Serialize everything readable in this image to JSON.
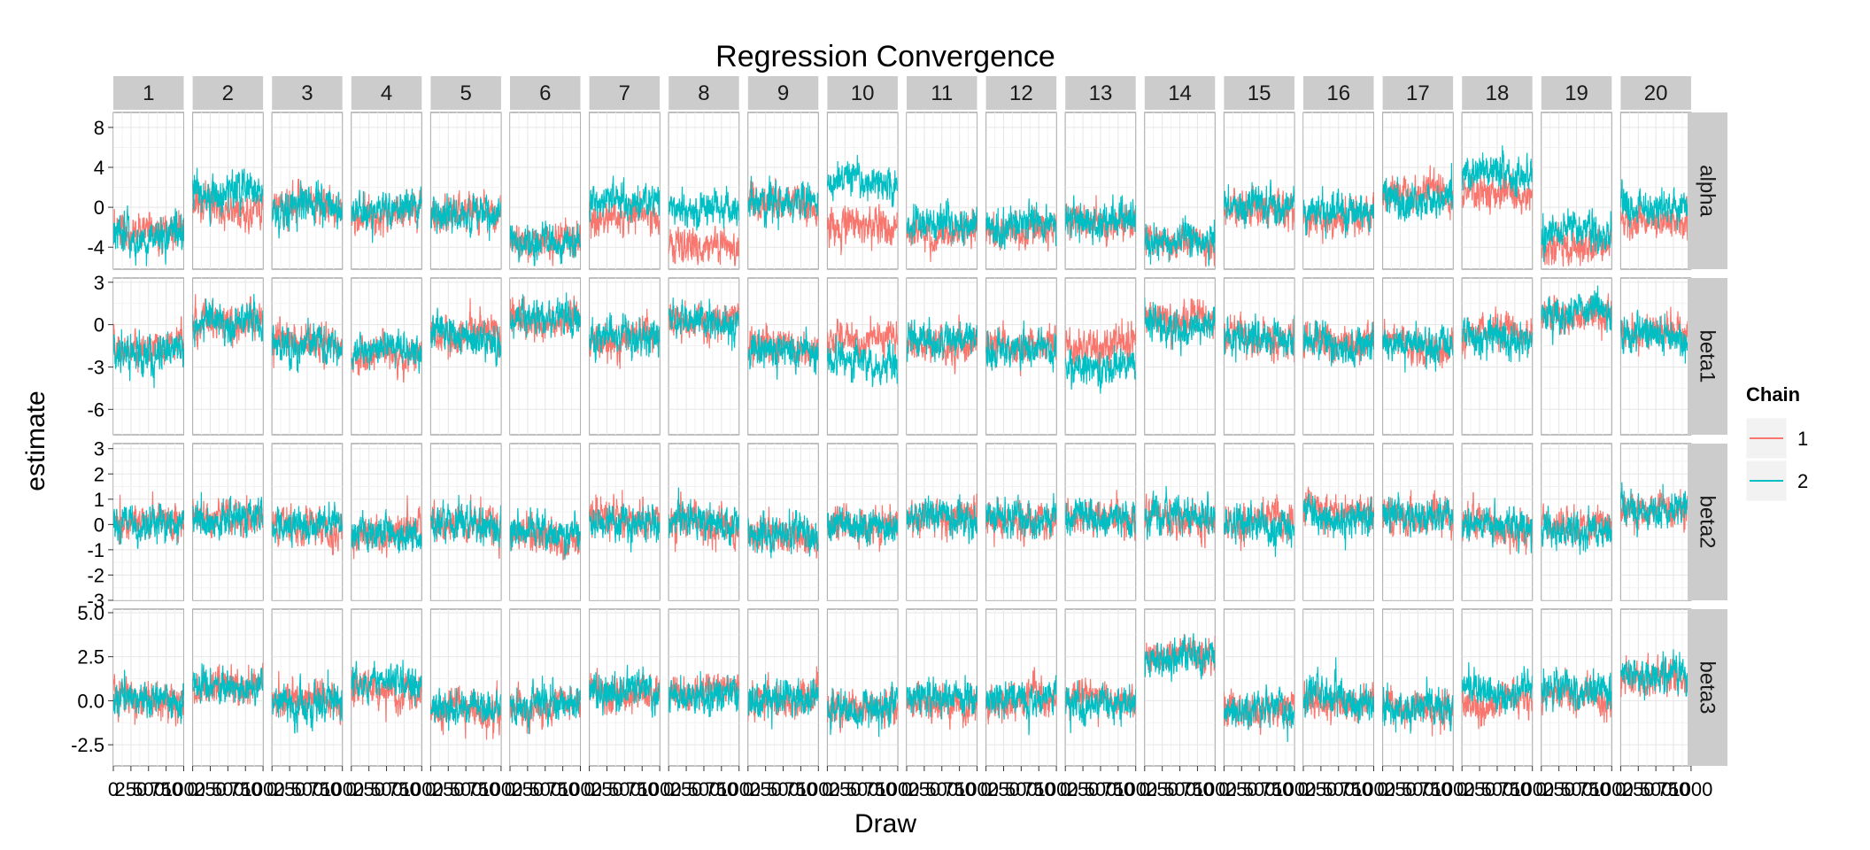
{
  "chart_data": {
    "type": "line",
    "title": "Regression Convergence",
    "xlabel": "Draw",
    "ylabel": "estimate",
    "x_range": [
      0,
      1000
    ],
    "x_ticks": [
      0,
      250,
      500,
      750,
      1000
    ],
    "facet_columns": [
      "1",
      "2",
      "3",
      "4",
      "5",
      "6",
      "7",
      "8",
      "9",
      "10",
      "11",
      "12",
      "13",
      "14",
      "15",
      "16",
      "17",
      "18",
      "19",
      "20"
    ],
    "facet_rows": [
      {
        "label": "alpha",
        "ylim": [
          -6.2,
          9.5
        ],
        "ticks": [
          -4,
          0,
          4,
          8
        ]
      },
      {
        "label": "beta1",
        "ylim": [
          -7.8,
          3.3
        ],
        "ticks": [
          -6,
          -3,
          0,
          3
        ]
      },
      {
        "label": "beta2",
        "ylim": [
          -3.0,
          3.2
        ],
        "ticks": [
          -3,
          -2,
          -1,
          0,
          1,
          2,
          3
        ]
      },
      {
        "label": "beta3",
        "ylim": [
          -3.7,
          5.2
        ],
        "ticks": [
          -2.5,
          0.0,
          2.5,
          5.0
        ],
        "tick_labels": [
          "-2.5",
          "0.0",
          "2.5",
          "5.0"
        ]
      }
    ],
    "legend": {
      "title": "Chain",
      "position": "right",
      "entries": [
        "1",
        "2"
      ]
    },
    "series_colors": {
      "1": "#F8766D",
      "2": "#00BFC4"
    },
    "draws_per_chain": 1000,
    "chain_summary": {
      "alpha": {
        "1": [
          -2.5,
          -0.3,
          0.0,
          -0.6,
          -1.0,
          -3.5,
          -1.0,
          -3.5,
          0.3,
          -2.0,
          -2.5,
          -2.0,
          -1.5,
          -3.5,
          -0.5,
          -0.8,
          1.2,
          1.5,
          -4.0,
          -1.0
        ],
        "2": [
          -2.8,
          1.5,
          0.0,
          -0.3,
          -0.8,
          -3.5,
          0.5,
          0.0,
          0.3,
          2.5,
          -1.5,
          -1.5,
          -1.0,
          -3.5,
          0.5,
          -0.5,
          1.2,
          3.0,
          -2.5,
          0.0
        ]
      },
      "beta1": {
        "1": [
          -1.5,
          0.0,
          -1.3,
          -2.0,
          -0.7,
          0.4,
          -1.0,
          0.3,
          -1.8,
          -1.2,
          -1.5,
          -1.5,
          -1.5,
          0.3,
          -1.0,
          -1.2,
          -1.3,
          -0.7,
          0.5,
          -0.7
        ],
        "2": [
          -2.0,
          0.0,
          -1.3,
          -2.0,
          -0.7,
          0.4,
          -1.0,
          0.3,
          -1.8,
          -2.5,
          -1.0,
          -2.0,
          -3.0,
          0.2,
          -1.0,
          -1.2,
          -1.4,
          -1.0,
          1.0,
          -0.6
        ]
      },
      "beta2": {
        "1": [
          0.0,
          0.3,
          -0.1,
          -0.3,
          0.0,
          -0.5,
          0.2,
          0.0,
          -0.4,
          0.0,
          0.3,
          0.2,
          0.3,
          0.2,
          0.0,
          0.5,
          0.4,
          0.0,
          0.0,
          0.6
        ],
        "2": [
          0.0,
          0.3,
          -0.1,
          -0.3,
          0.0,
          -0.3,
          0.2,
          0.0,
          -0.4,
          0.0,
          0.3,
          0.2,
          0.3,
          0.2,
          0.0,
          0.5,
          0.4,
          0.0,
          -0.1,
          0.5
        ]
      },
      "beta3": {
        "1": [
          0.0,
          0.5,
          0.0,
          0.5,
          -0.4,
          -0.4,
          0.5,
          0.5,
          0.0,
          -0.5,
          0.0,
          0.0,
          0.0,
          2.5,
          -0.5,
          0.0,
          -0.3,
          0.0,
          0.5,
          1.2
        ],
        "2": [
          0.0,
          1.0,
          0.0,
          1.0,
          -0.4,
          -0.4,
          0.5,
          0.5,
          0.0,
          -0.5,
          0.2,
          0.0,
          0.0,
          2.5,
          -0.5,
          0.0,
          -0.3,
          0.5,
          0.5,
          1.4
        ]
      }
    }
  }
}
